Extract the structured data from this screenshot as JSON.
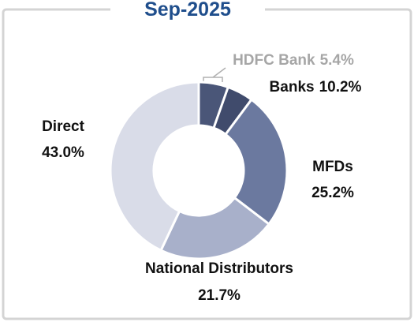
{
  "chart_data": {
    "type": "donut",
    "title": "Sep-2025",
    "segments": [
      {
        "name": "Banks",
        "value": 10.2,
        "value_label": "10.2%",
        "color": "#404b6c",
        "parts": [
          {
            "name": "HDFC Bank",
            "value": 5.4,
            "value_label": "5.4%",
            "color": "#4a5678"
          }
        ]
      },
      {
        "name": "MFDs",
        "value": 25.2,
        "value_label": "25.2%",
        "color": "#6b799f"
      },
      {
        "name": "National Distributors",
        "value": 21.7,
        "value_label": "21.7%",
        "color": "#a8b0ca"
      },
      {
        "name": "Direct",
        "value": 43.0,
        "value_label": "43.0%",
        "color": "#d9dce8"
      }
    ]
  }
}
